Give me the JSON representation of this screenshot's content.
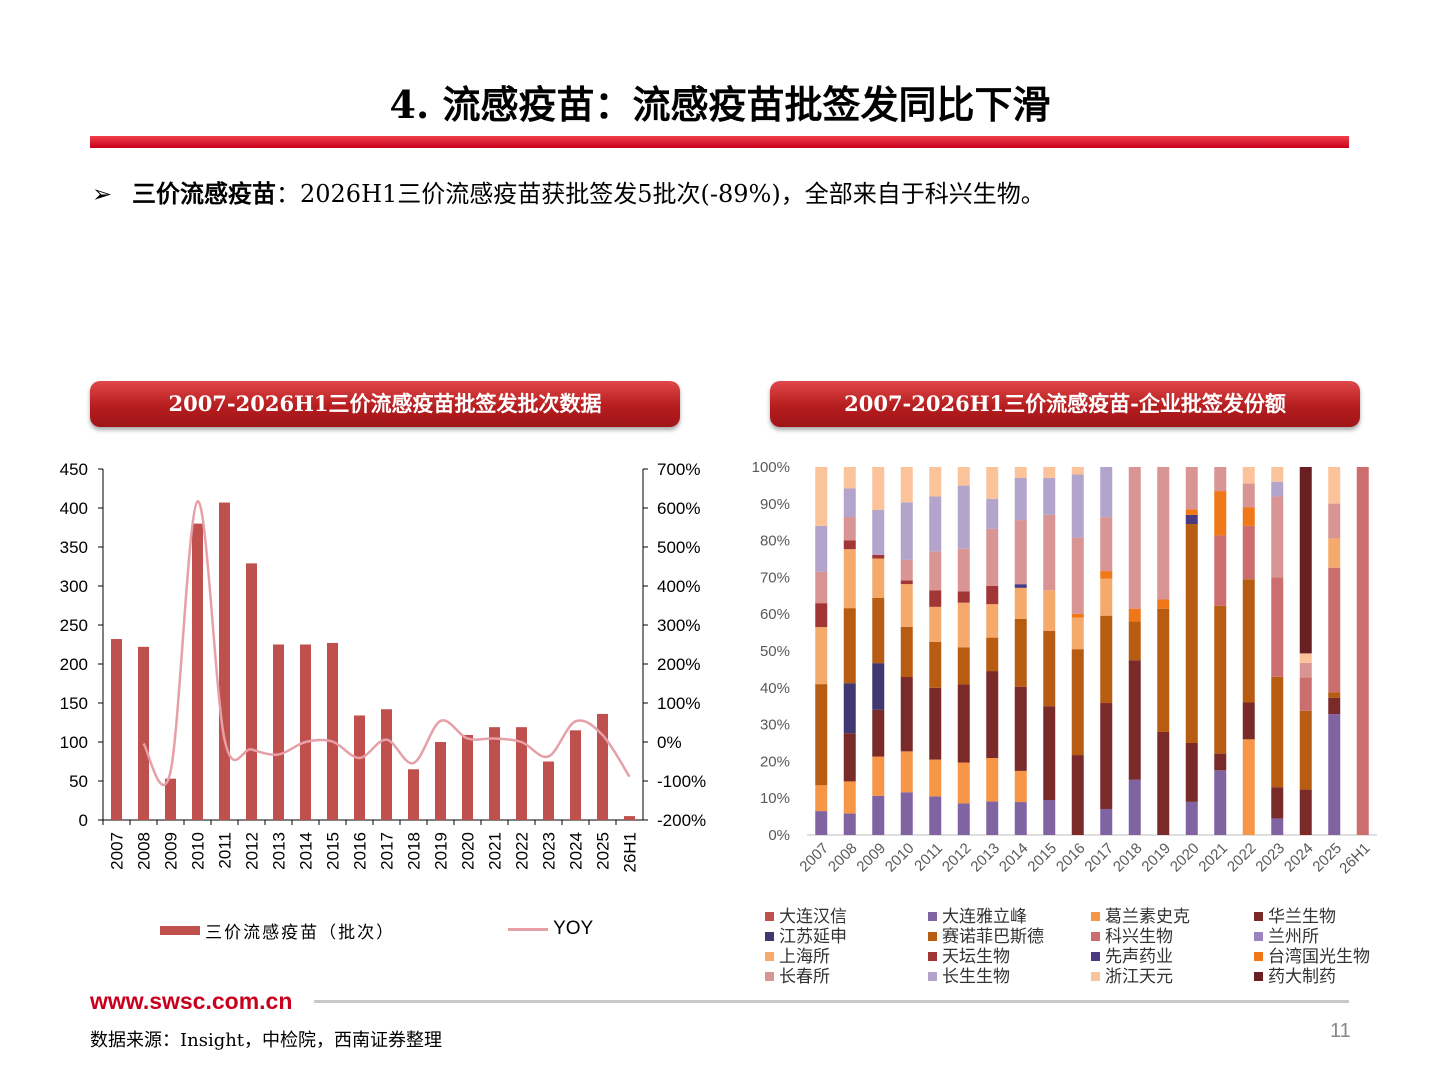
{
  "slide": {
    "title": "4. 流感疫苗：流感疫苗批签发同比下滑",
    "bullet_marker": "➢",
    "bullet_lead": "三价流感疫苗",
    "bullet_text": "：2026H1三价流感疫苗获批签发5批次(-89%)，全部来自于科兴生物。",
    "left_panel_title": "2007-2026H1三价流感疫苗批签发批次数据",
    "right_panel_title": "2007-2026H1三价流感疫苗-企业批签发份额",
    "footer_url": "www.swsc.com.cn",
    "source": "数据来源：Insight，中检院，西南证券整理",
    "page_number": "11"
  },
  "chart_data": [
    {
      "type": "bar",
      "categories": [
        "2007",
        "2008",
        "2009",
        "2010",
        "2011",
        "2012",
        "2013",
        "2014",
        "2015",
        "2016",
        "2017",
        "2018",
        "2019",
        "2020",
        "2021",
        "2022",
        "2023",
        "2024",
        "2025",
        "26H1"
      ],
      "series": [
        {
          "name": "三价流感疫苗（批次）",
          "kind": "bar",
          "axis": "left",
          "color": "#c0504d",
          "values": [
            232,
            222,
            53,
            380,
            407,
            329,
            225,
            225,
            227,
            134,
            142,
            65,
            100,
            109,
            119,
            119,
            75,
            115,
            136,
            5
          ]
        },
        {
          "name": "YOY",
          "kind": "line",
          "axis": "right",
          "color": "#e6a0a8",
          "values": [
            null,
            -4,
            -76,
            617,
            7,
            -19,
            -32,
            0,
            1,
            -41,
            6,
            -54,
            54,
            9,
            9,
            0,
            -37,
            53,
            18,
            -89
          ]
        }
      ],
      "y_left": {
        "min": 0,
        "max": 450,
        "ticks": [
          "0",
          "50",
          "100",
          "150",
          "200",
          "250",
          "300",
          "350",
          "400",
          "450"
        ]
      },
      "y_right": {
        "min": -200,
        "max": 700,
        "ticks": [
          "-200%",
          "-100%",
          "0%",
          "100%",
          "200%",
          "300%",
          "400%",
          "500%",
          "600%",
          "700%"
        ]
      },
      "grid": false,
      "legend": "bottom"
    },
    {
      "type": "bar",
      "stacked": "percent",
      "categories": [
        "2007",
        "2008",
        "2009",
        "2010",
        "2011",
        "2012",
        "2013",
        "2014",
        "2015",
        "2016",
        "2017",
        "2018",
        "2019",
        "2020",
        "2021",
        "2022",
        "2023",
        "2024",
        "2025",
        "26H1"
      ],
      "y_ticks": [
        "0%",
        "10%",
        "20%",
        "30%",
        "40%",
        "50%",
        "60%",
        "70%",
        "80%",
        "90%",
        "100%"
      ],
      "grid": false,
      "legend": "bottom",
      "series": [
        {
          "name": "大连汉信",
          "color": "#c0504d",
          "values": [
            0,
            0,
            0,
            0,
            0,
            0,
            0,
            0,
            0,
            0,
            0,
            0,
            0,
            0,
            0,
            0,
            0,
            0,
            0,
            0
          ]
        },
        {
          "name": "大连雅立峰",
          "color": "#8064a2",
          "values": [
            6.5,
            6,
            10.5,
            11.5,
            10.5,
            8.5,
            10,
            9,
            9.5,
            0,
            7,
            15,
            0,
            9,
            17.5,
            0,
            4.5,
            0,
            33,
            0
          ]
        },
        {
          "name": "葛兰素史克",
          "color": "#f79646",
          "values": [
            7,
            9,
            10.5,
            11,
            10,
            11,
            13,
            8.5,
            0,
            0,
            0,
            0,
            0,
            0,
            0,
            26,
            0,
            0,
            0,
            0
          ]
        },
        {
          "name": "华兰生物",
          "color": "#7b2a2a",
          "values": [
            0,
            13.5,
            12.5,
            20,
            19.5,
            21,
            26,
            23,
            25.5,
            21.5,
            28.5,
            32.5,
            28,
            16,
            4.5,
            10,
            8.5,
            9.5,
            4.5,
            0
          ]
        },
        {
          "name": "江苏延申",
          "color": "#403870",
          "values": [
            0,
            14,
            12.5,
            0,
            0,
            0,
            0,
            0,
            0,
            0,
            0,
            0,
            0,
            0,
            0,
            0,
            0,
            0,
            0,
            0
          ]
        },
        {
          "name": "赛诺菲巴斯德",
          "color": "#b85c12",
          "values": [
            27.5,
            21,
            17.5,
            13.5,
            12.5,
            10,
            10,
            18.5,
            20.5,
            28.5,
            23.5,
            10.5,
            33.5,
            59.5,
            40,
            33.5,
            30,
            16.5,
            1.5,
            0
          ]
        },
        {
          "name": "科兴生物",
          "color": "#cc6e6e",
          "values": [
            0,
            0,
            0,
            0,
            0,
            0,
            0,
            0,
            0,
            0,
            0,
            0,
            0,
            0,
            19,
            14.5,
            27,
            7,
            34,
            100
          ]
        },
        {
          "name": "兰州所",
          "color": "#9b83bf",
          "values": [
            0,
            0,
            0,
            0,
            0,
            0,
            0,
            0,
            0,
            0,
            0,
            0,
            0,
            0,
            0,
            0,
            0,
            0,
            0,
            0
          ]
        },
        {
          "name": "上海所",
          "color": "#f5a96a",
          "values": [
            15.5,
            16.5,
            10.5,
            11.5,
            9.5,
            12,
            10,
            8.5,
            11,
            8.5,
            10,
            0,
            0,
            0,
            0,
            0,
            0,
            0,
            8,
            0
          ]
        },
        {
          "name": "天坛生物",
          "color": "#a23535",
          "values": [
            6.5,
            2.5,
            1,
            1,
            4.5,
            3,
            5.5,
            0,
            0,
            0,
            0,
            0,
            0,
            0,
            0,
            0,
            0,
            0,
            0,
            0
          ]
        },
        {
          "name": "先声药业",
          "color": "#4a3a80",
          "values": [
            0,
            0,
            0,
            0,
            0,
            0,
            0,
            1,
            0,
            0,
            0,
            0,
            0,
            2.5,
            0,
            0,
            0,
            0,
            0,
            0
          ]
        },
        {
          "name": "台湾国光生物",
          "color": "#f07818",
          "values": [
            0,
            0,
            0,
            0,
            0,
            0,
            0,
            0,
            0,
            1,
            2,
            3.5,
            2.5,
            1.5,
            12,
            5,
            0,
            0,
            0,
            0
          ]
        },
        {
          "name": "长春所",
          "color": "#d99494",
          "values": [
            8.5,
            6.5,
            0,
            5.5,
            10.5,
            11.5,
            17,
            17.5,
            20.5,
            20.5,
            14.5,
            38.5,
            36,
            11.5,
            6.5,
            6.5,
            22,
            3,
            9.5,
            0
          ]
        },
        {
          "name": "长生生物",
          "color": "#b3a4cc",
          "values": [
            12.5,
            8,
            12,
            15.5,
            15,
            17,
            9,
            11.5,
            10,
            17,
            13.5,
            0,
            0,
            0,
            0,
            0,
            4,
            0,
            0,
            0
          ]
        },
        {
          "name": "浙江天元",
          "color": "#fbc399",
          "values": [
            16,
            6,
            11.5,
            9.5,
            8,
            5,
            9.5,
            3,
            3,
            2,
            0,
            0,
            0,
            0,
            0,
            4.5,
            4,
            2,
            10,
            0
          ]
        },
        {
          "name": "药大制药",
          "color": "#6a1f23",
          "values": [
            0,
            0,
            0,
            0,
            0,
            0,
            0,
            0,
            0,
            0,
            0,
            0,
            0,
            0,
            0,
            0,
            0,
            39,
            0,
            0
          ]
        }
      ]
    }
  ]
}
